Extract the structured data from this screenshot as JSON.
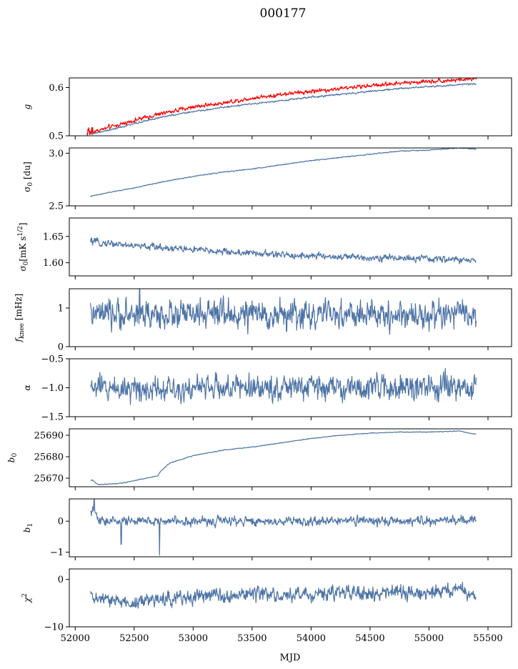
{
  "figure": {
    "title": "000177",
    "xlabel": "MJD"
  },
  "colors": {
    "series_main": "#4e74a6",
    "series_red": "#ff0000"
  },
  "chart_data": [
    {
      "type": "line",
      "ylabel": "g",
      "ylim": [
        0.5,
        0.62
      ],
      "yticks": [
        {
          "v": 0.5,
          "label": "0.5"
        },
        {
          "v": 0.6,
          "label": "0.6"
        }
      ],
      "xlim": [
        51950,
        55700
      ],
      "series": [
        {
          "color_key": "series_red",
          "noise": 0.002,
          "x": [
            52100,
            52150,
            52300,
            52500,
            52750,
            53000,
            53250,
            53500,
            53750,
            54000,
            54250,
            54500,
            54750,
            55000,
            55250,
            55400
          ],
          "y": [
            0.508,
            0.508,
            0.518,
            0.532,
            0.547,
            0.56,
            0.568,
            0.578,
            0.586,
            0.592,
            0.598,
            0.604,
            0.609,
            0.613,
            0.616,
            0.618
          ]
        },
        {
          "color_key": "series_main",
          "noise": 0.0008,
          "x": [
            52130,
            52150,
            52300,
            52500,
            52750,
            53000,
            53250,
            53500,
            53750,
            54000,
            54250,
            54500,
            54750,
            55000,
            55250,
            55400
          ],
          "y": [
            0.505,
            0.505,
            0.512,
            0.525,
            0.54,
            0.55,
            0.559,
            0.566,
            0.573,
            0.58,
            0.586,
            0.592,
            0.598,
            0.602,
            0.606,
            0.608
          ]
        }
      ]
    },
    {
      "type": "line",
      "ylabel": "σ0 [du]",
      "ylim": [
        2.5,
        3.05
      ],
      "yticks": [
        {
          "v": 2.5,
          "label": "2.5"
        },
        {
          "v": 3.0,
          "label": "3.0"
        }
      ],
      "xlim": [
        51950,
        55700
      ],
      "series": [
        {
          "color_key": "series_main",
          "noise": 0.002,
          "x": [
            52130,
            52300,
            52500,
            52750,
            53000,
            53250,
            53500,
            53750,
            54000,
            54250,
            54500,
            54750,
            55000,
            55250,
            55400
          ],
          "y": [
            2.59,
            2.63,
            2.67,
            2.73,
            2.78,
            2.82,
            2.85,
            2.89,
            2.93,
            2.96,
            2.99,
            3.02,
            3.03,
            3.05,
            3.04
          ]
        }
      ]
    },
    {
      "type": "line",
      "ylabel": "σ0[mK s1/2]",
      "ylim": [
        1.575,
        1.685
      ],
      "yticks": [
        {
          "v": 1.6,
          "label": "1.60"
        },
        {
          "v": 1.65,
          "label": "1.65"
        }
      ],
      "xlim": [
        51950,
        55700
      ],
      "series": [
        {
          "color_key": "series_main",
          "noise": 0.003,
          "x": [
            52130,
            52200,
            52300,
            52500,
            52750,
            53000,
            53250,
            53500,
            53750,
            54000,
            54250,
            54500,
            54750,
            55000,
            55250,
            55400
          ],
          "y": [
            1.641,
            1.638,
            1.637,
            1.632,
            1.629,
            1.625,
            1.621,
            1.618,
            1.615,
            1.613,
            1.611,
            1.61,
            1.609,
            1.607,
            1.606,
            1.602
          ]
        }
      ]
    },
    {
      "type": "line",
      "ylabel": "fknee [mHz]",
      "ylim": [
        0,
        1.5
      ],
      "yticks": [
        {
          "v": 0,
          "label": "0"
        },
        {
          "v": 1,
          "label": "1"
        }
      ],
      "xlim": [
        51950,
        55700
      ],
      "series": [
        {
          "color_key": "series_main",
          "noise": 0.17,
          "x": [
            52130,
            53000,
            54000,
            55000,
            55400
          ],
          "y": [
            0.82,
            0.83,
            0.82,
            0.82,
            0.83
          ]
        }
      ]
    },
    {
      "type": "line",
      "ylabel": "α",
      "ylim": [
        -1.5,
        -0.5
      ],
      "yticks": [
        {
          "v": -1.5,
          "label": "−1.5"
        },
        {
          "v": -1.0,
          "label": "−1.0"
        },
        {
          "v": -0.5,
          "label": "−0.5"
        }
      ],
      "xlim": [
        51950,
        55700
      ],
      "series": [
        {
          "color_key": "series_main",
          "noise": 0.1,
          "x": [
            52130,
            53000,
            54000,
            55000,
            55400
          ],
          "y": [
            -1.0,
            -1.0,
            -1.0,
            -1.0,
            -1.02
          ]
        }
      ]
    },
    {
      "type": "line",
      "ylabel": "b0",
      "ylim": [
        25666,
        25693
      ],
      "yticks": [
        {
          "v": 25670,
          "label": "25670"
        },
        {
          "v": 25680,
          "label": "25680"
        },
        {
          "v": 25690,
          "label": "25690"
        }
      ],
      "xlim": [
        51950,
        55700
      ],
      "series": [
        {
          "color_key": "series_main",
          "noise": 0.08,
          "x": [
            52130,
            52150,
            52180,
            52200,
            52400,
            52600,
            52700,
            52720,
            52800,
            53000,
            53250,
            53500,
            53750,
            54000,
            54250,
            54500,
            54750,
            55000,
            55250,
            55400
          ],
          "y": [
            25669,
            25669,
            25667.5,
            25667,
            25667.7,
            25670,
            25671,
            25673,
            25677,
            25680.5,
            25683,
            25684.5,
            25686.5,
            25688.5,
            25690,
            25691,
            25691.5,
            25691.5,
            25692,
            25690.5
          ]
        }
      ]
    },
    {
      "type": "line",
      "ylabel": "b1",
      "ylim": [
        -1.15,
        0.72
      ],
      "yticks": [
        {
          "v": -1,
          "label": "−1"
        },
        {
          "v": 0,
          "label": "0"
        }
      ],
      "xlim": [
        51950,
        55700
      ],
      "series": [
        {
          "color_key": "series_main",
          "noise": 0.07,
          "x": [
            52130,
            52160,
            52200,
            53000,
            54000,
            55000,
            55400
          ],
          "y": [
            0.2,
            0.35,
            0.0,
            0.0,
            0.0,
            0.0,
            0.05
          ]
        }
      ]
    },
    {
      "type": "line",
      "ylabel": "χ2",
      "ylim": [
        -10,
        2.2
      ],
      "yticks": [
        {
          "v": -10,
          "label": "−10"
        },
        {
          "v": 0,
          "label": "0"
        }
      ],
      "xlim": [
        51950,
        55700
      ],
      "xticks": [
        52000,
        52500,
        53000,
        53500,
        54000,
        54500,
        55000,
        55500
      ],
      "series": [
        {
          "color_key": "series_main",
          "noise": 0.7,
          "x": [
            52130,
            52300,
            52500,
            52700,
            52900,
            53100,
            53300,
            53500,
            53700,
            53900,
            54100,
            54300,
            54500,
            54700,
            54900,
            55100,
            55300,
            55400
          ],
          "y": [
            -3.8,
            -4.5,
            -5.0,
            -4.2,
            -3.8,
            -3.5,
            -3.2,
            -3.0,
            -3.5,
            -3.3,
            -3.0,
            -2.8,
            -3.2,
            -3.0,
            -2.8,
            -2.6,
            -2.5,
            -3.5
          ]
        }
      ]
    }
  ]
}
